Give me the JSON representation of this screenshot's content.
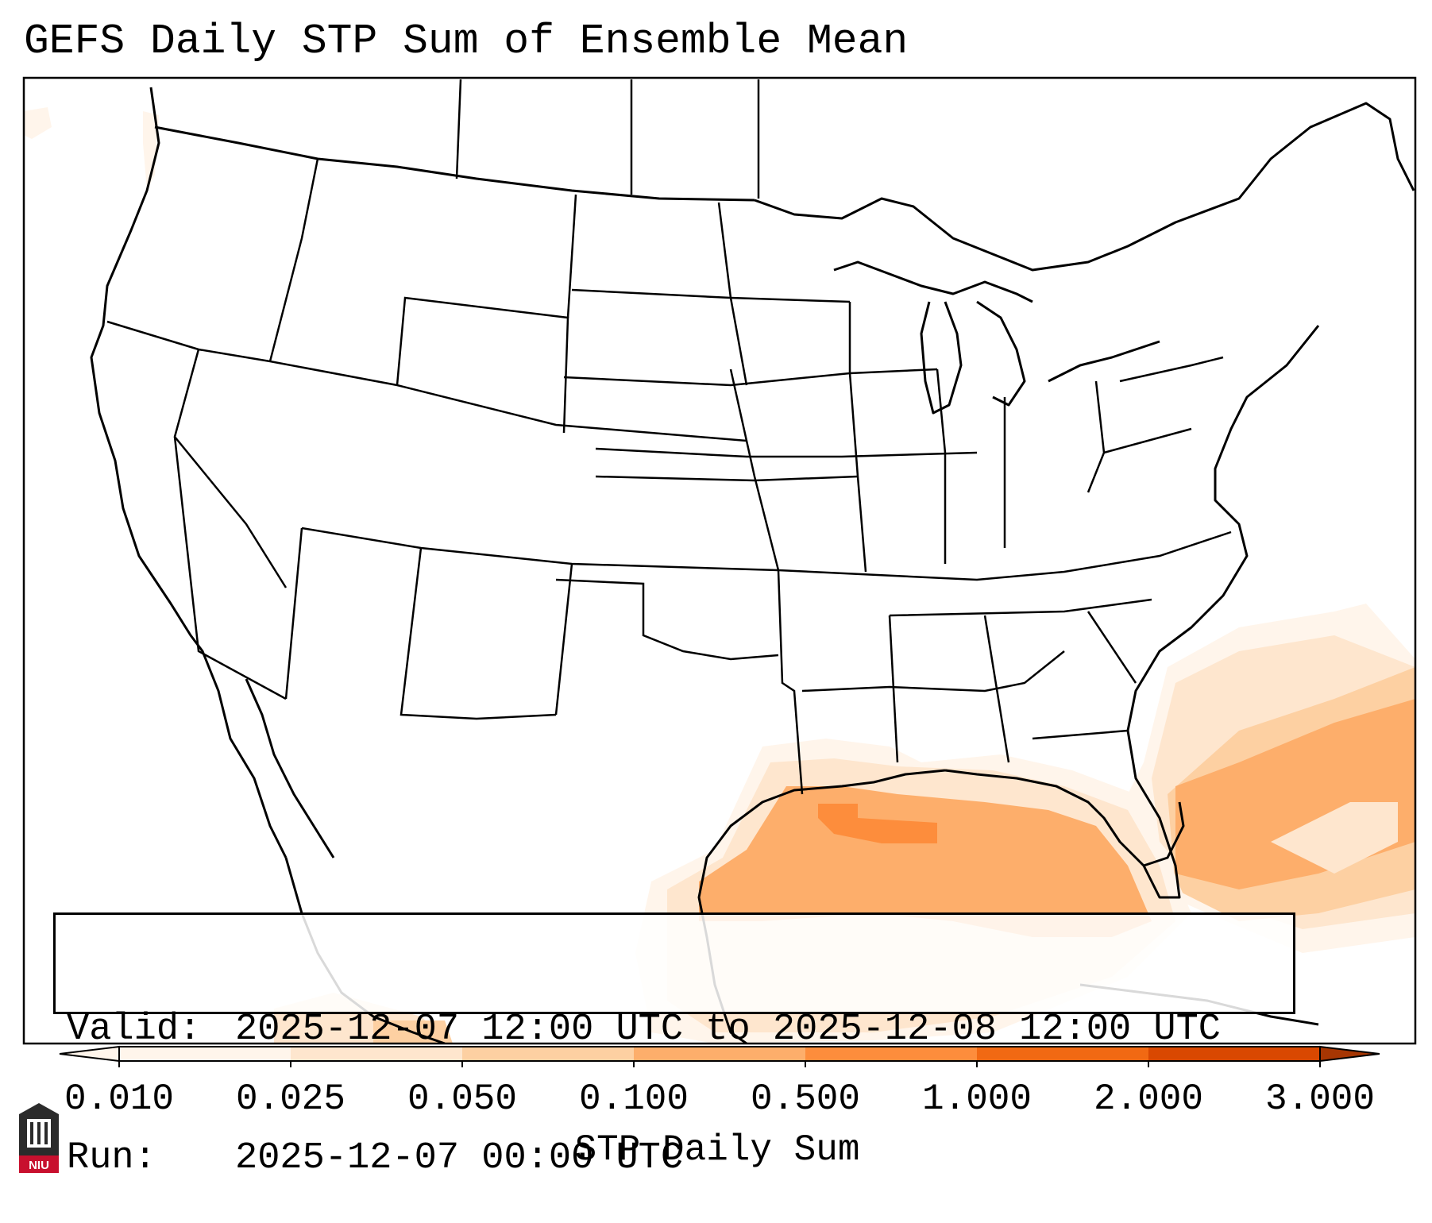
{
  "title": "GEFS Daily STP Sum of Ensemble Mean",
  "info": {
    "valid_label": "Valid:",
    "valid_value": "2025-12-07 12:00 UTC to 2025-12-08 12:00 UTC",
    "run_label": "Run:",
    "run_value": "2025-12-07 00:00 UTC"
  },
  "colorbar": {
    "title": "STP Daily Sum",
    "ticks": [
      "0.010",
      "0.025",
      "0.050",
      "0.100",
      "0.500",
      "1.000",
      "2.000",
      "3.000"
    ],
    "colors": [
      "#fff5eb",
      "#fee6ce",
      "#fdd0a2",
      "#fdae6b",
      "#fd8d3c",
      "#f16913",
      "#d94801",
      "#a63603"
    ],
    "extend": "both"
  },
  "logo": {
    "text": "NIU",
    "color": "#c8102e"
  },
  "colors": {
    "land": "#ffffff",
    "borders": "#000000"
  }
}
